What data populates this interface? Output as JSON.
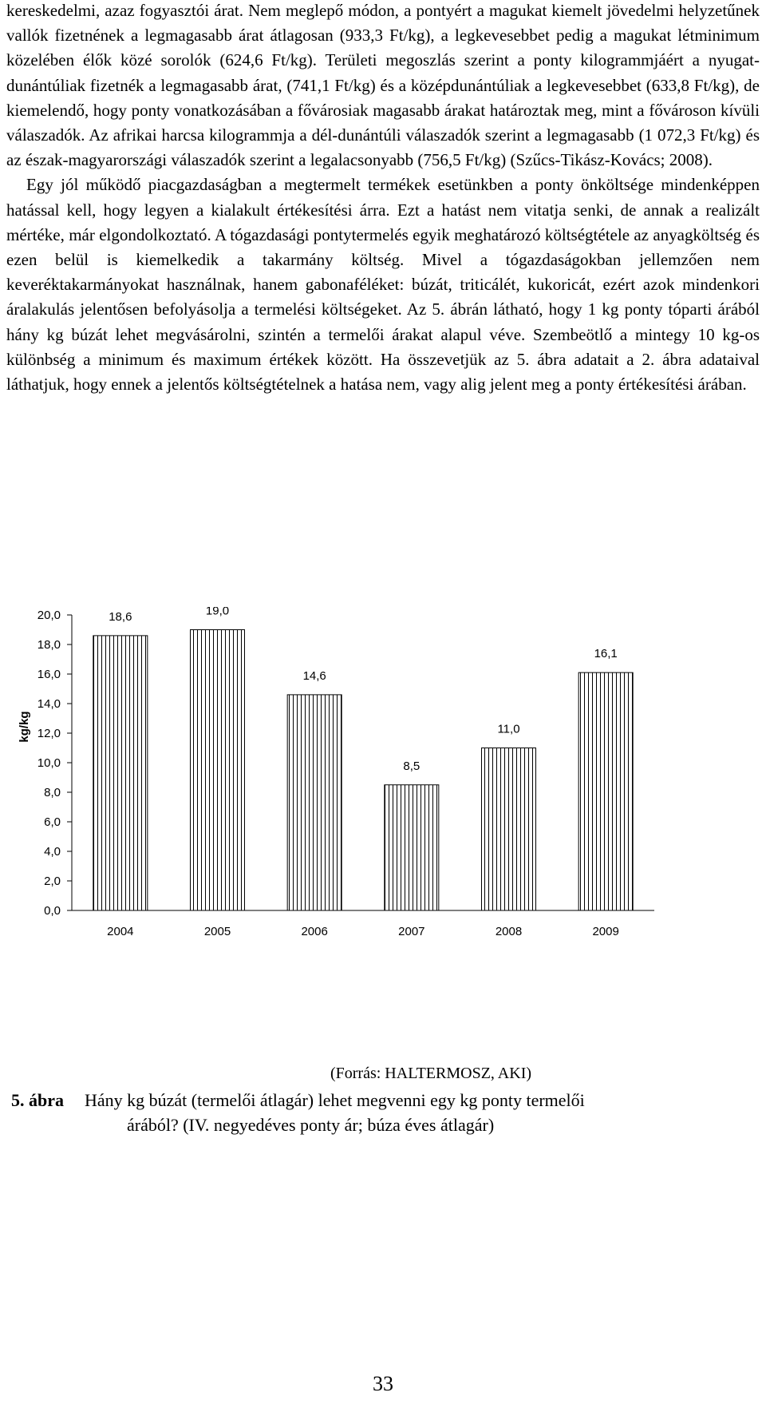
{
  "paragraphs": [
    "kereskedelmi, azaz fogyasztói árat. Nem meglepő módon, a pontyért a magukat kiemelt jövedelmi helyzetűnek vallók fizetnének a legmagasabb árat átlagosan (933,3 Ft/kg), a legkevesebbet pedig a magukat létminimum közelében élők közé sorolók (624,6 Ft/kg). Területi megoszlás szerint a ponty kilogrammjáért a nyugat-dunántúliak fizetnék a legmagasabb árat, (741,1 Ft/kg) és a középdunántúliak a legkevesebbet (633,8 Ft/kg), de kiemelendő, hogy ponty vonatkozásában a fővárosiak magasabb árakat határoztak meg, mint a fővároson kívüli válaszadók. Az afrikai harcsa kilogrammja a dél-dunántúli válaszadók szerint a legmagasabb (1 072,3 Ft/kg) és az észak-magyarországi válaszadók szerint a legalacsonyabb (756,5 Ft/kg) (Szűcs-Tikász-Kovács; 2008).",
    "Egy jól működő piacgazdaságban a megtermelt termékek esetünkben a ponty önköltsége mindenképpen hatással kell, hogy legyen a kialakult értékesítési árra. Ezt a hatást nem vitatja senki, de annak a realizált mértéke, már elgondolkoztató. A tógazdasági pontytermelés egyik meghatározó költségtétele az anyagköltség és ezen belül is kiemelkedik a takarmány költség. Mivel a tógazdaságokban jellemzően nem keveréktakarmányokat használnak, hanem gabonaféléket: búzát, triticálét, kukoricát, ezért azok mindenkori áralakulás jelentősen befolyásolja a termelési költségeket. Az 5. ábrán látható, hogy 1 kg ponty tóparti árából hány kg búzát lehet megvásárolni, szintén a termelői árakat alapul véve. Szembeötlő a mintegy 10 kg-os különbség a minimum és maximum értékek között. Ha összevetjük az 5. ábra adatait a 2. ábra adataival láthatjuk, hogy ennek a jelentős költségtételnek a hatása nem, vagy alig jelent meg a ponty értékesítési árában."
  ],
  "chart_data": {
    "type": "bar",
    "categories": [
      "2004",
      "2005",
      "2006",
      "2007",
      "2008",
      "2009"
    ],
    "values": [
      18.6,
      19.0,
      14.6,
      8.5,
      11.0,
      16.1
    ],
    "value_labels": [
      "18,6",
      "19,0",
      "14,6",
      "8,5",
      "11,0",
      "16,1"
    ],
    "ylabel": "kg/kg",
    "ylim": [
      0,
      20
    ],
    "yticks": [
      "0,0",
      "2,0",
      "4,0",
      "6,0",
      "8,0",
      "10,0",
      "12,0",
      "14,0",
      "16,0",
      "18,0",
      "20,0"
    ],
    "bar_fill": "vertical-hatch",
    "grid": false
  },
  "source": "(Forrás: HALTERMOSZ, AKI)",
  "caption": {
    "number": "5. ábra",
    "line1": "Hány kg búzát (termelői átlagár) lehet megvenni egy kg ponty termelői",
    "line2": "árából? (IV. negyedéves ponty ár; búza éves átlagár)"
  },
  "page_number": "33"
}
